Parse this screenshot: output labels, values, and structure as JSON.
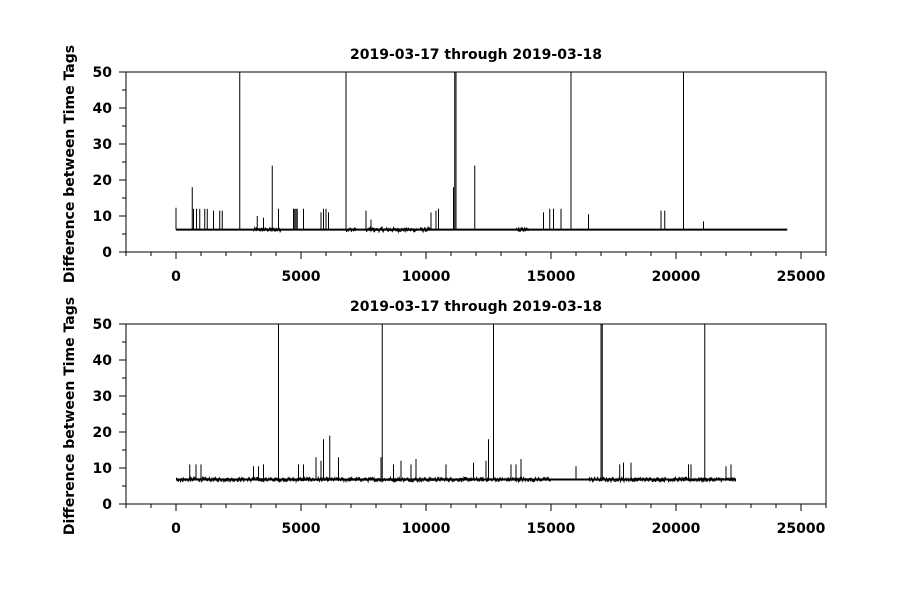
{
  "chart_data": [
    {
      "type": "line",
      "title": "2019-03-17 through 2019-03-18",
      "ylabel": "Difference between Time Tags",
      "xlabel": "",
      "xlim": [
        -2000,
        26000
      ],
      "ylim": [
        0,
        50
      ],
      "xticks": [
        0,
        5000,
        10000,
        15000,
        20000,
        25000
      ],
      "yticks": [
        0,
        10,
        20,
        30,
        40,
        50
      ],
      "baseline": 6.2,
      "x_end": 24450,
      "noise_bands": [
        [
          3100,
          4200
        ],
        [
          6800,
          7200
        ],
        [
          7600,
          10200
        ],
        [
          13600,
          14100
        ]
      ],
      "spikes": [
        [
          0,
          12.3
        ],
        [
          650,
          18
        ],
        [
          700,
          12
        ],
        [
          820,
          12
        ],
        [
          950,
          12
        ],
        [
          1150,
          12
        ],
        [
          1250,
          12
        ],
        [
          1500,
          11.5
        ],
        [
          1750,
          11.5
        ],
        [
          1850,
          11.5
        ],
        [
          2550,
          50
        ],
        [
          3250,
          10
        ],
        [
          3500,
          9.5
        ],
        [
          3850,
          24
        ],
        [
          4100,
          12
        ],
        [
          4700,
          12
        ],
        [
          4750,
          12
        ],
        [
          4800,
          12
        ],
        [
          4850,
          12
        ],
        [
          5100,
          12
        ],
        [
          5800,
          11
        ],
        [
          5900,
          12
        ],
        [
          6000,
          12
        ],
        [
          6100,
          11
        ],
        [
          6800,
          50
        ],
        [
          7600,
          11.5
        ],
        [
          7800,
          9
        ],
        [
          10200,
          11
        ],
        [
          10400,
          11.5
        ],
        [
          10500,
          12
        ],
        [
          11100,
          18
        ],
        [
          11150,
          50
        ],
        [
          11200,
          50
        ],
        [
          11950,
          24
        ],
        [
          14700,
          11
        ],
        [
          14950,
          12
        ],
        [
          15100,
          12
        ],
        [
          15400,
          12
        ],
        [
          15800,
          50
        ],
        [
          16500,
          10.5
        ],
        [
          19400,
          11.5
        ],
        [
          19550,
          11.5
        ],
        [
          20300,
          50
        ],
        [
          21100,
          8.5
        ]
      ]
    },
    {
      "type": "line",
      "title": "2019-03-17 through 2019-03-18",
      "ylabel": "Difference between Time Tags",
      "xlabel": "",
      "xlim": [
        -2000,
        26000
      ],
      "ylim": [
        0,
        50
      ],
      "xticks": [
        0,
        5000,
        10000,
        15000,
        20000,
        25000
      ],
      "yticks": [
        0,
        10,
        20,
        30,
        40,
        50
      ],
      "baseline": 6.8,
      "x_end": 22400,
      "noise_bands": [
        [
          0,
          15000
        ],
        [
          16500,
          22400
        ]
      ],
      "spikes": [
        [
          550,
          11
        ],
        [
          800,
          11
        ],
        [
          1000,
          11
        ],
        [
          3100,
          10.5
        ],
        [
          3300,
          10.5
        ],
        [
          3500,
          11
        ],
        [
          4100,
          50
        ],
        [
          4900,
          11
        ],
        [
          5100,
          11
        ],
        [
          5600,
          13
        ],
        [
          5800,
          12
        ],
        [
          5900,
          18
        ],
        [
          6150,
          19
        ],
        [
          6500,
          13
        ],
        [
          8200,
          13
        ],
        [
          8250,
          50
        ],
        [
          8700,
          11
        ],
        [
          9000,
          12
        ],
        [
          9400,
          11
        ],
        [
          9600,
          12.5
        ],
        [
          10800,
          11
        ],
        [
          11900,
          11.5
        ],
        [
          12400,
          12
        ],
        [
          12500,
          18
        ],
        [
          12700,
          50
        ],
        [
          13400,
          11
        ],
        [
          13600,
          11
        ],
        [
          13800,
          12.5
        ],
        [
          16000,
          10.5
        ],
        [
          17000,
          50
        ],
        [
          17050,
          50
        ],
        [
          17750,
          11
        ],
        [
          17900,
          11.5
        ],
        [
          18200,
          11.5
        ],
        [
          20500,
          11
        ],
        [
          20600,
          11
        ],
        [
          21150,
          50
        ],
        [
          22000,
          10.5
        ],
        [
          22200,
          11
        ]
      ]
    }
  ]
}
